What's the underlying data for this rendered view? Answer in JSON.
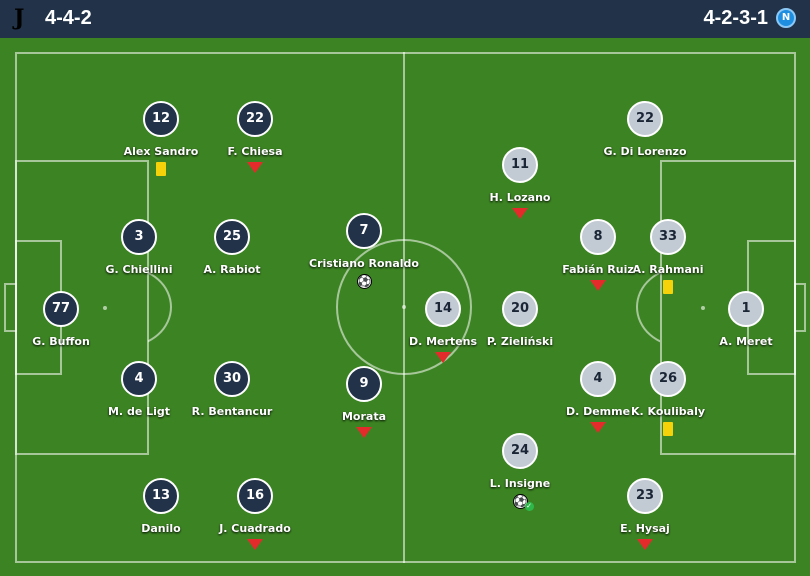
{
  "header": {
    "home_formation": "4-4-2",
    "away_formation": "4-2-3-1",
    "home_logo": "juventus-logo",
    "away_logo": "napoli-logo"
  },
  "colors": {
    "pitch": "#3c8423",
    "header": "#213249",
    "home_player": "#213249",
    "away_player": "#c2cad4",
    "sub_arrow": "#e42b2b",
    "yellow_card": "#f5d20a"
  },
  "home": [
    {
      "number": "77",
      "name": "G. Buffon",
      "event": ""
    },
    {
      "number": "3",
      "name": "G. Chiellini",
      "event": ""
    },
    {
      "number": "25",
      "name": "A. Rabiot",
      "event": ""
    },
    {
      "number": "4",
      "name": "M. de Ligt",
      "event": ""
    },
    {
      "number": "30",
      "name": "R. Bentancur",
      "event": ""
    },
    {
      "number": "12",
      "name": "Alex Sandro",
      "event": "yellow-card"
    },
    {
      "number": "22",
      "name": "F. Chiesa",
      "event": "substituted"
    },
    {
      "number": "13",
      "name": "Danilo",
      "event": ""
    },
    {
      "number": "16",
      "name": "J. Cuadrado",
      "event": "substituted"
    },
    {
      "number": "7",
      "name": "Cristiano Ronaldo",
      "event": "goal"
    },
    {
      "number": "9",
      "name": "Morata",
      "event": "substituted"
    }
  ],
  "away": [
    {
      "number": "1",
      "name": "A. Meret",
      "event": ""
    },
    {
      "number": "22",
      "name": "G. Di Lorenzo",
      "event": ""
    },
    {
      "number": "33",
      "name": "A. Rahmani",
      "event": "yellow-card"
    },
    {
      "number": "26",
      "name": "K. Koulibaly",
      "event": "yellow-card"
    },
    {
      "number": "23",
      "name": "E. Hysaj",
      "event": "substituted"
    },
    {
      "number": "8",
      "name": "Fabián Ruiz",
      "event": "substituted"
    },
    {
      "number": "4",
      "name": "D. Demme",
      "event": "substituted"
    },
    {
      "number": "11",
      "name": "H. Lozano",
      "event": "substituted"
    },
    {
      "number": "20",
      "name": "P. Zieliński",
      "event": ""
    },
    {
      "number": "24",
      "name": "L. Insigne",
      "event": "goal-scored"
    },
    {
      "number": "14",
      "name": "D. Mertens",
      "event": "substituted"
    }
  ]
}
